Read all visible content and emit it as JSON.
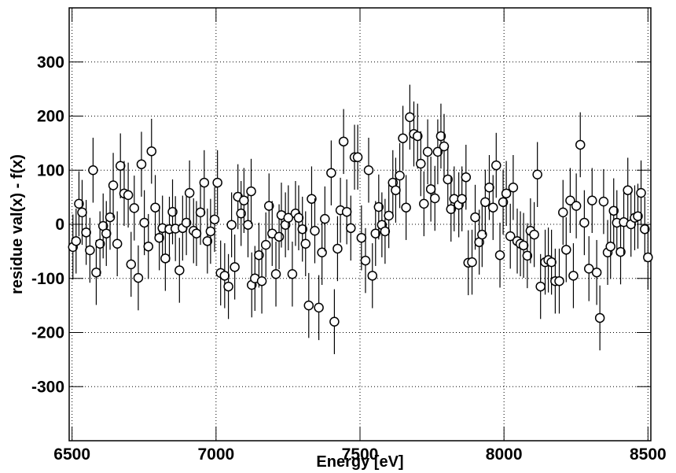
{
  "chart_data": {
    "type": "errorbar",
    "xlabel": "Energy [eV]",
    "ylabel": "residue val(x) - f(x)",
    "xlim": [
      6490,
      8510
    ],
    "ylim": [
      -400,
      400
    ],
    "xticks": [
      6500,
      7000,
      7500,
      8000,
      8500
    ],
    "yticks": [
      -300,
      -200,
      -100,
      0,
      100,
      200,
      300
    ],
    "grid": true,
    "color": "#000000",
    "error": 60,
    "x": [
      6503,
      6514,
      6524,
      6535,
      6549,
      6562,
      6573,
      6584,
      6597,
      6608,
      6619,
      6632,
      6643,
      6657,
      6668,
      6681,
      6695,
      6705,
      6716,
      6730,
      6741,
      6751,
      6765,
      6776,
      6789,
      6803,
      6814,
      6824,
      6838,
      6849,
      6859,
      6873,
      6884,
      6897,
      6908,
      6922,
      6932,
      6946,
      6959,
      6970,
      6981,
      6995,
      7005,
      7016,
      7030,
      7043,
      7054,
      7065,
      7076,
      7087,
      7097,
      7111,
      7122,
      7124,
      7135,
      7149,
      7159,
      7173,
      7184,
      7195,
      7208,
      7219,
      7227,
      7241,
      7251,
      7265,
      7276,
      7287,
      7300,
      7311,
      7322,
      7332,
      7343,
      7357,
      7368,
      7378,
      7400,
      7411,
      7422,
      7432,
      7443,
      7454,
      7468,
      7481,
      7492,
      7505,
      7519,
      7530,
      7543,
      7554,
      7565,
      7576,
      7587,
      7600,
      7614,
      7624,
      7638,
      7649,
      7660,
      7673,
      7687,
      7700,
      7711,
      7722,
      7735,
      7746,
      7760,
      7770,
      7781,
      7792,
      7805,
      7816,
      7827,
      7843,
      7854,
      7868,
      7876,
      7889,
      7900,
      7914,
      7924,
      7935,
      7949,
      7962,
      7973,
      7986,
      7997,
      8008,
      8022,
      8032,
      8046,
      8057,
      8068,
      8081,
      8092,
      8105,
      8116,
      8127,
      8143,
      8154,
      8165,
      8178,
      8192,
      8205,
      8216,
      8230,
      8241,
      8251,
      8265,
      8279,
      8295,
      8306,
      8322,
      8333,
      8346,
      8360,
      8370,
      8381,
      8392,
      8405,
      8416,
      8430,
      8441,
      8454,
      8465,
      8476,
      8489,
      8500
    ],
    "values": [
      -42,
      -31,
      38,
      22,
      -15,
      -48,
      100,
      -89,
      -36,
      -3,
      -17,
      13,
      72,
      -36,
      108,
      57,
      54,
      -74,
      30,
      -99,
      111,
      3,
      -41,
      135,
      31,
      -25,
      -7,
      -63,
      -9,
      23,
      -8,
      -85,
      -7,
      3,
      58,
      -12,
      -17,
      22,
      77,
      -31,
      -13,
      9,
      77,
      -90,
      -95,
      -115,
      -1,
      -79,
      51,
      20,
      44,
      -1,
      61,
      -112,
      -100,
      -57,
      -105,
      -38,
      34,
      -17,
      -92,
      -23,
      17,
      -1,
      12,
      -92,
      20,
      12,
      -9,
      -36,
      -150,
      47,
      -12,
      -154,
      -52,
      10,
      95,
      -180,
      -45,
      26,
      153,
      23,
      -7,
      124,
      124,
      -25,
      -67,
      100,
      -95,
      -17,
      32,
      -1,
      -13,
      16,
      77,
      63,
      90,
      159,
      31,
      198,
      167,
      163,
      112,
      38,
      134,
      65,
      48,
      134,
      163,
      144,
      83,
      28,
      47,
      36,
      47,
      87,
      -71,
      -70,
      13,
      -33,
      -19,
      41,
      68,
      31,
      109,
      -57,
      41,
      57,
      -22,
      68,
      -31,
      -36,
      -39,
      -58,
      -12,
      -19,
      92,
      -115,
      -70,
      -66,
      -70,
      -105,
      -105,
      22,
      -47,
      44,
      -95,
      34,
      147,
      3,
      -82,
      44,
      -89,
      -173,
      42,
      -52,
      -41,
      25,
      3,
      -51,
      4,
      63,
      0,
      12,
      15,
      58,
      -9,
      -61
    ]
  }
}
